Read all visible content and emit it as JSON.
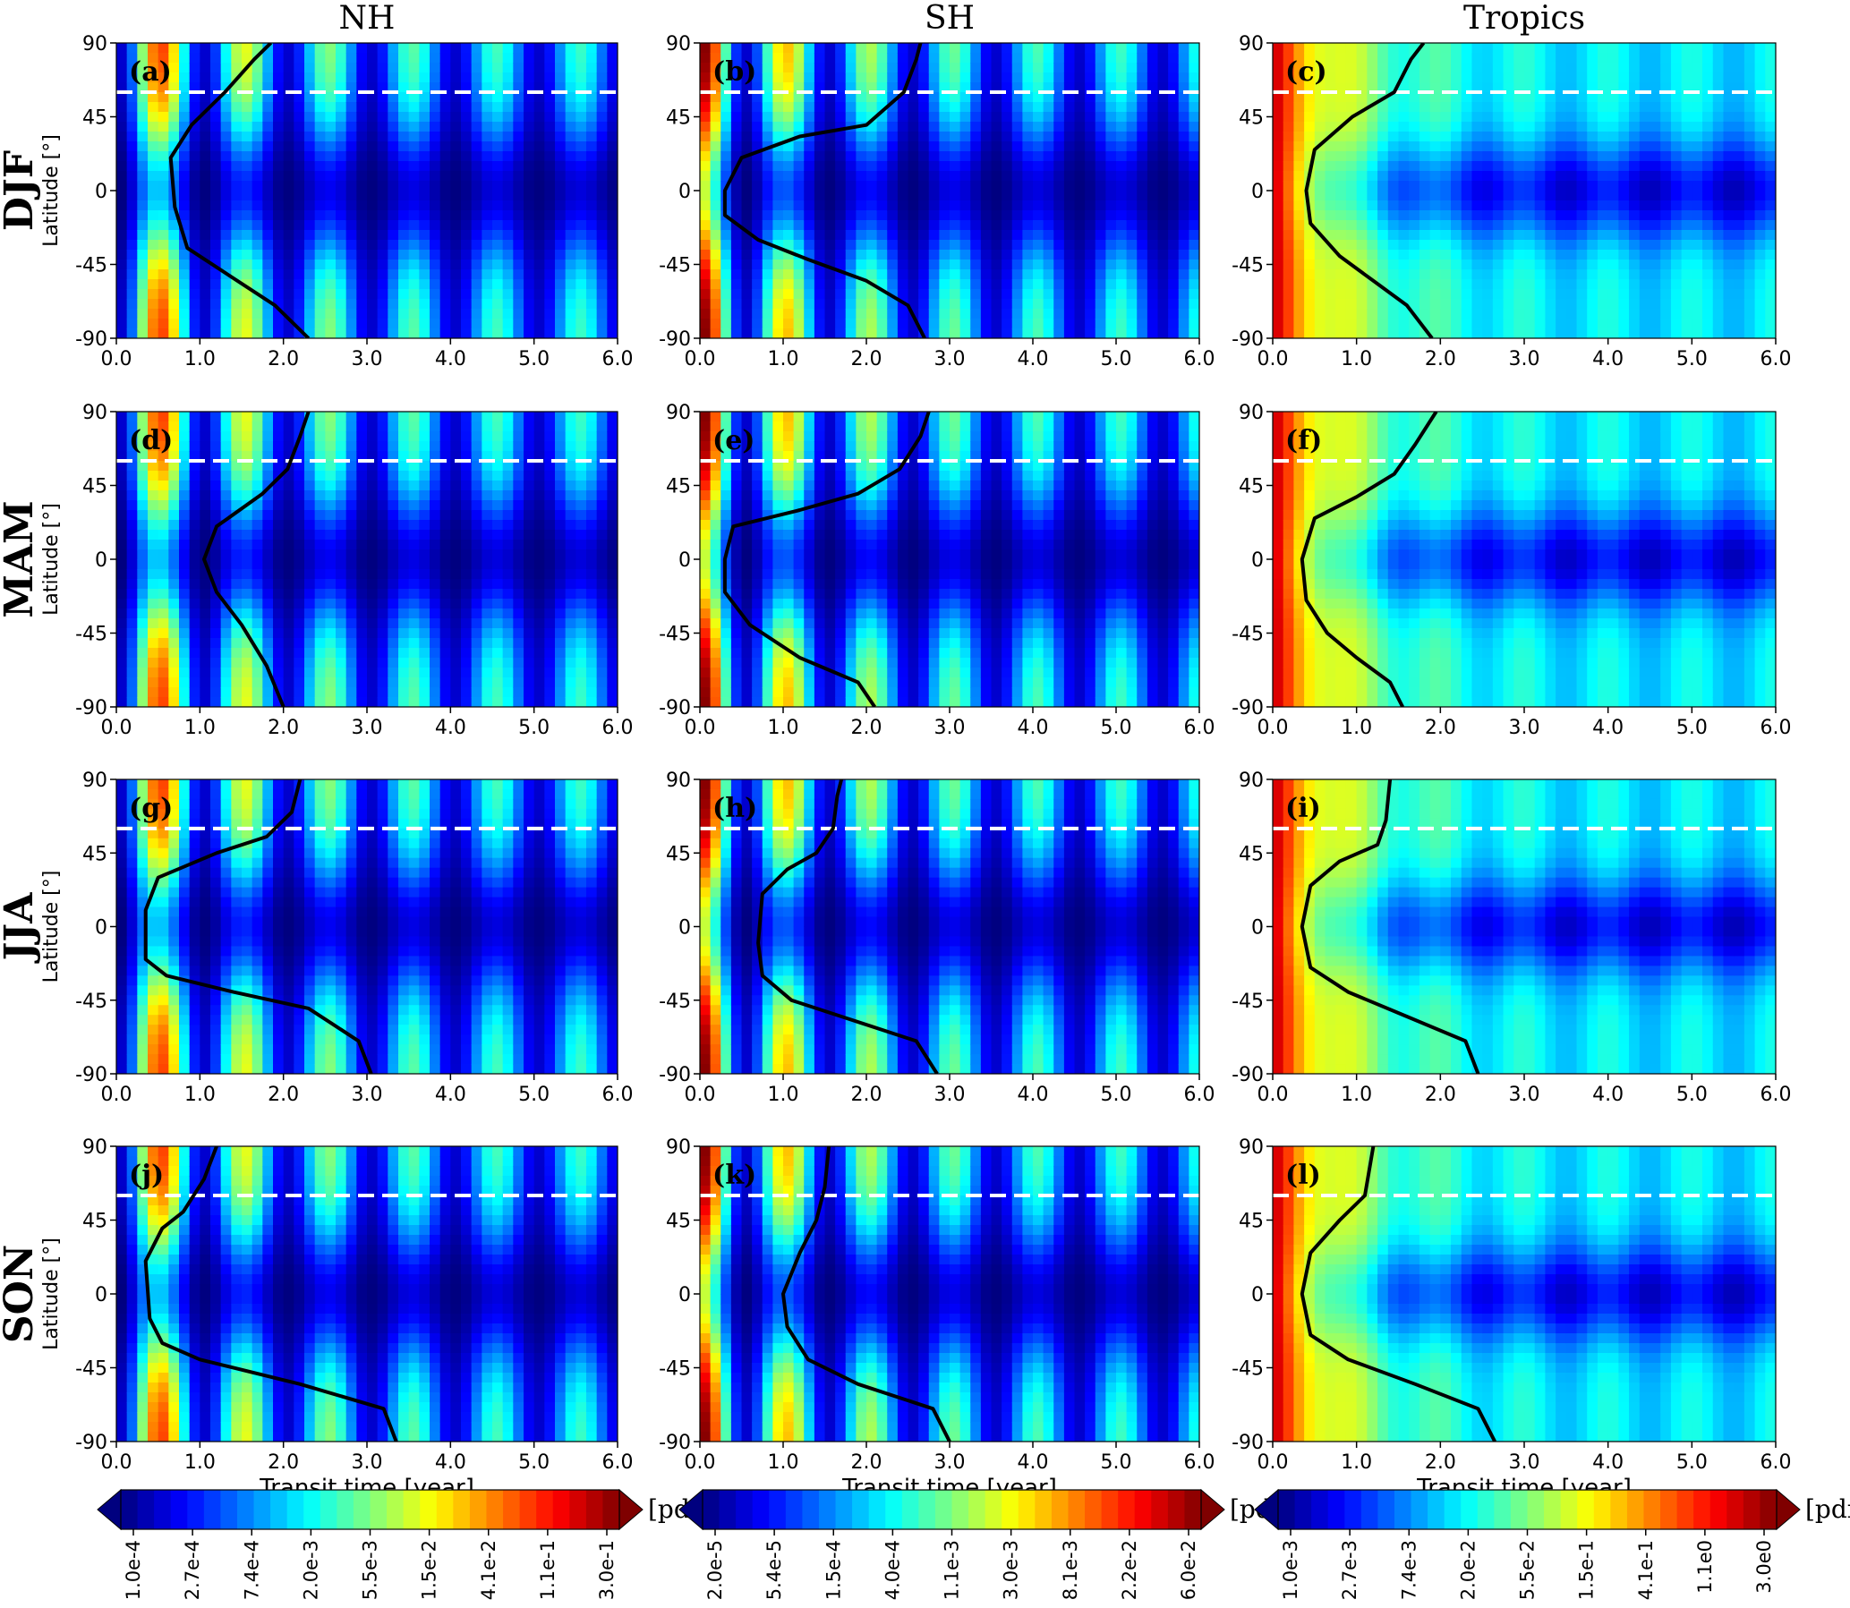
{
  "columns": [
    "NH",
    "SH",
    "Tropics"
  ],
  "rows": [
    "DJF",
    "MAM",
    "JJA",
    "SON"
  ],
  "xlabel": "Transit time [year]",
  "ylabel": "Latitude [°]",
  "chart_data": {
    "type": "heatmap",
    "xlim": [
      0.0,
      6.0
    ],
    "ylim": [
      -90,
      90
    ],
    "xticks": [
      "0.0",
      "1.0",
      "2.0",
      "3.0",
      "4.0",
      "5.0",
      "6.0"
    ],
    "yticks": [
      "90",
      "45",
      "0",
      "-45",
      "-90"
    ],
    "dashed_line_latitude": 60,
    "panels": [
      {
        "id": "a",
        "label": "(a)",
        "row": "DJF",
        "column": "NH",
        "curve": [
          [
            2.3,
            -90
          ],
          [
            1.9,
            -70
          ],
          [
            1.3,
            -50
          ],
          [
            0.85,
            -35
          ],
          [
            0.7,
            -10
          ],
          [
            0.65,
            20
          ],
          [
            0.9,
            40
          ],
          [
            1.3,
            60
          ],
          [
            1.65,
            80
          ],
          [
            1.85,
            90
          ]
        ]
      },
      {
        "id": "b",
        "label": "(b)",
        "row": "DJF",
        "column": "SH",
        "curve": [
          [
            2.7,
            -90
          ],
          [
            2.5,
            -70
          ],
          [
            2.0,
            -55
          ],
          [
            1.3,
            -42
          ],
          [
            0.7,
            -30
          ],
          [
            0.3,
            -15
          ],
          [
            0.3,
            0
          ],
          [
            0.5,
            20
          ],
          [
            1.2,
            33
          ],
          [
            2.0,
            40
          ],
          [
            2.45,
            60
          ],
          [
            2.6,
            80
          ],
          [
            2.65,
            90
          ]
        ]
      },
      {
        "id": "c",
        "label": "(c)",
        "row": "DJF",
        "column": "Tropics",
        "curve": [
          [
            1.9,
            -90
          ],
          [
            1.6,
            -70
          ],
          [
            1.2,
            -55
          ],
          [
            0.8,
            -40
          ],
          [
            0.45,
            -20
          ],
          [
            0.4,
            0
          ],
          [
            0.5,
            25
          ],
          [
            0.95,
            45
          ],
          [
            1.45,
            60
          ],
          [
            1.65,
            80
          ],
          [
            1.8,
            90
          ]
        ]
      },
      {
        "id": "d",
        "label": "(d)",
        "row": "MAM",
        "column": "NH",
        "curve": [
          [
            2.0,
            -90
          ],
          [
            1.8,
            -65
          ],
          [
            1.5,
            -40
          ],
          [
            1.2,
            -20
          ],
          [
            1.05,
            0
          ],
          [
            1.2,
            20
          ],
          [
            1.75,
            40
          ],
          [
            2.05,
            55
          ],
          [
            2.2,
            75
          ],
          [
            2.3,
            90
          ]
        ]
      },
      {
        "id": "e",
        "label": "(e)",
        "row": "MAM",
        "column": "SH",
        "curve": [
          [
            2.1,
            -90
          ],
          [
            1.9,
            -75
          ],
          [
            1.2,
            -60
          ],
          [
            0.6,
            -40
          ],
          [
            0.3,
            -20
          ],
          [
            0.3,
            0
          ],
          [
            0.4,
            20
          ],
          [
            1.2,
            30
          ],
          [
            1.9,
            40
          ],
          [
            2.4,
            55
          ],
          [
            2.65,
            75
          ],
          [
            2.75,
            90
          ]
        ]
      },
      {
        "id": "f",
        "label": "(f)",
        "row": "MAM",
        "column": "Tropics",
        "curve": [
          [
            1.55,
            -90
          ],
          [
            1.4,
            -75
          ],
          [
            1.0,
            -60
          ],
          [
            0.65,
            -45
          ],
          [
            0.4,
            -25
          ],
          [
            0.35,
            0
          ],
          [
            0.5,
            25
          ],
          [
            1.0,
            38
          ],
          [
            1.45,
            52
          ],
          [
            1.7,
            70
          ],
          [
            1.95,
            90
          ]
        ]
      },
      {
        "id": "g",
        "label": "(g)",
        "row": "JJA",
        "column": "NH",
        "curve": [
          [
            3.05,
            -90
          ],
          [
            2.9,
            -70
          ],
          [
            2.3,
            -50
          ],
          [
            1.4,
            -40
          ],
          [
            0.6,
            -30
          ],
          [
            0.35,
            -20
          ],
          [
            0.35,
            10
          ],
          [
            0.5,
            30
          ],
          [
            1.2,
            45
          ],
          [
            1.8,
            55
          ],
          [
            2.1,
            70
          ],
          [
            2.2,
            90
          ]
        ]
      },
      {
        "id": "h",
        "label": "(h)",
        "row": "JJA",
        "column": "SH",
        "curve": [
          [
            2.85,
            -90
          ],
          [
            2.6,
            -70
          ],
          [
            1.7,
            -55
          ],
          [
            1.1,
            -45
          ],
          [
            0.75,
            -30
          ],
          [
            0.7,
            -10
          ],
          [
            0.75,
            20
          ],
          [
            1.05,
            35
          ],
          [
            1.4,
            45
          ],
          [
            1.6,
            60
          ],
          [
            1.65,
            80
          ],
          [
            1.7,
            90
          ]
        ]
      },
      {
        "id": "i",
        "label": "(i)",
        "row": "JJA",
        "column": "Tropics",
        "curve": [
          [
            2.45,
            -90
          ],
          [
            2.3,
            -70
          ],
          [
            1.6,
            -55
          ],
          [
            0.9,
            -40
          ],
          [
            0.45,
            -25
          ],
          [
            0.35,
            0
          ],
          [
            0.45,
            25
          ],
          [
            0.8,
            40
          ],
          [
            1.25,
            50
          ],
          [
            1.35,
            65
          ],
          [
            1.4,
            90
          ]
        ]
      },
      {
        "id": "j",
        "label": "(j)",
        "row": "SON",
        "column": "NH",
        "curve": [
          [
            3.35,
            -90
          ],
          [
            3.2,
            -70
          ],
          [
            2.2,
            -55
          ],
          [
            1.0,
            -40
          ],
          [
            0.55,
            -30
          ],
          [
            0.4,
            -15
          ],
          [
            0.35,
            20
          ],
          [
            0.55,
            40
          ],
          [
            0.8,
            50
          ],
          [
            1.05,
            70
          ],
          [
            1.2,
            90
          ]
        ]
      },
      {
        "id": "k",
        "label": "(k)",
        "row": "SON",
        "column": "SH",
        "curve": [
          [
            3.0,
            -90
          ],
          [
            2.8,
            -70
          ],
          [
            1.9,
            -55
          ],
          [
            1.3,
            -40
          ],
          [
            1.05,
            -20
          ],
          [
            1.0,
            0
          ],
          [
            1.2,
            25
          ],
          [
            1.4,
            45
          ],
          [
            1.5,
            65
          ],
          [
            1.55,
            90
          ]
        ]
      },
      {
        "id": "l",
        "label": "(l)",
        "row": "SON",
        "column": "Tropics",
        "curve": [
          [
            2.65,
            -90
          ],
          [
            2.45,
            -70
          ],
          [
            1.7,
            -55
          ],
          [
            0.9,
            -40
          ],
          [
            0.45,
            -25
          ],
          [
            0.35,
            0
          ],
          [
            0.45,
            25
          ],
          [
            0.8,
            45
          ],
          [
            1.1,
            60
          ],
          [
            1.2,
            90
          ]
        ]
      }
    ]
  },
  "colorbars": [
    {
      "unit": "[pdf]",
      "ticks": [
        "1.0e-4",
        "2.7e-4",
        "7.4e-4",
        "2.0e-3",
        "5.5e-3",
        "1.5e-2",
        "4.1e-2",
        "1.1e-1",
        "3.0e-1"
      ]
    },
    {
      "unit": "[pdf]",
      "ticks": [
        "2.0e-5",
        "5.4e-5",
        "1.5e-4",
        "4.0e-4",
        "1.1e-3",
        "3.0e-3",
        "8.1e-3",
        "2.2e-2",
        "6.0e-2"
      ]
    },
    {
      "unit": "[pdf]",
      "ticks": [
        "1.0e-3",
        "2.7e-3",
        "7.4e-3",
        "2.0e-2",
        "5.5e-2",
        "1.5e-1",
        "4.1e-1",
        "1.1e0",
        "3.0e0"
      ]
    }
  ],
  "colormap": [
    "#00007f",
    "#0000ff",
    "#007fff",
    "#00ffff",
    "#7fff7f",
    "#ffff00",
    "#ff7f00",
    "#ff0000",
    "#7f0000"
  ]
}
